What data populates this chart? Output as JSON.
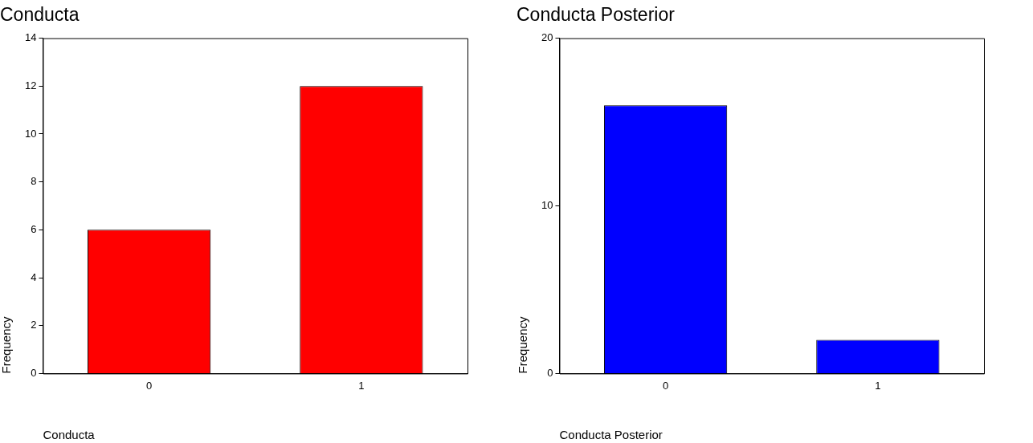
{
  "chart_data": [
    {
      "type": "bar",
      "title": "Conducta",
      "xlabel": "Conducta",
      "ylabel": "Frequency",
      "categories": [
        "0",
        "1"
      ],
      "values": [
        6,
        12
      ],
      "color": "#ff0000",
      "ylim": [
        0,
        14
      ],
      "yticks": [
        0,
        2,
        4,
        6,
        8,
        10,
        12,
        14
      ],
      "grid": false,
      "legend": false
    },
    {
      "type": "bar",
      "title": "Conducta Posterior",
      "xlabel": "Conducta Posterior",
      "ylabel": "Frequency",
      "categories": [
        "0",
        "1"
      ],
      "values": [
        16,
        2
      ],
      "color": "#0000ff",
      "ylim": [
        0,
        20
      ],
      "yticks": [
        0,
        10,
        20
      ],
      "grid": false,
      "legend": false
    }
  ]
}
